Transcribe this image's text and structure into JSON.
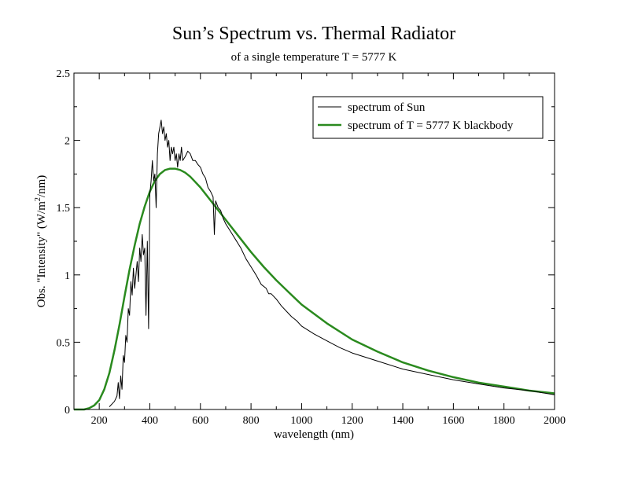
{
  "chart_data": {
    "type": "line",
    "title": "Sun’s Spectrum vs. Thermal Radiator",
    "subtitle": "of a single temperature T = 5777 K",
    "xlabel": "wavelength (nm)",
    "ylabel": {
      "prefix": "Obs. \"Intensity\" (W/m",
      "superscript": "2",
      "suffix": "/nm)"
    },
    "xlim": [
      100,
      2000
    ],
    "ylim": [
      0,
      2.5
    ],
    "x_ticks": [
      200,
      400,
      600,
      800,
      1000,
      1200,
      1400,
      1600,
      1800,
      2000
    ],
    "y_ticks": [
      0,
      0.5,
      1,
      1.5,
      2,
      2.5
    ],
    "y_tick_labels": [
      "0",
      "0.5",
      "1",
      "1.5",
      "2",
      "2.5"
    ],
    "grid": false,
    "legend_position": "top-right",
    "series": [
      {
        "name": "spectrum of Sun",
        "color": "#000000",
        "x": [
          240,
          250,
          260,
          270,
          275,
          280,
          285,
          290,
          295,
          300,
          305,
          310,
          315,
          320,
          325,
          330,
          335,
          340,
          345,
          350,
          355,
          360,
          365,
          370,
          375,
          380,
          385,
          390,
          395,
          400,
          405,
          410,
          415,
          420,
          425,
          430,
          435,
          440,
          445,
          450,
          455,
          460,
          465,
          470,
          475,
          480,
          485,
          490,
          495,
          500,
          505,
          510,
          515,
          520,
          525,
          530,
          540,
          550,
          560,
          570,
          580,
          590,
          600,
          610,
          620,
          630,
          640,
          650,
          655,
          660,
          670,
          680,
          690,
          700,
          720,
          740,
          760,
          780,
          800,
          820,
          840,
          860,
          870,
          880,
          900,
          920,
          940,
          960,
          980,
          1000,
          1050,
          1100,
          1150,
          1200,
          1300,
          1400,
          1500,
          1600,
          1700,
          1800,
          1900,
          2000
        ],
        "y": [
          0.02,
          0.04,
          0.06,
          0.1,
          0.2,
          0.08,
          0.25,
          0.15,
          0.4,
          0.35,
          0.55,
          0.5,
          0.75,
          0.7,
          0.95,
          0.85,
          1.05,
          0.9,
          1.0,
          1.1,
          0.95,
          1.2,
          1.1,
          1.3,
          1.15,
          1.2,
          0.7,
          1.25,
          0.6,
          1.6,
          1.7,
          1.85,
          1.7,
          1.75,
          1.5,
          1.9,
          2.05,
          2.1,
          2.15,
          2.05,
          2.1,
          2.0,
          2.05,
          1.95,
          2.0,
          1.85,
          1.95,
          1.9,
          1.95,
          1.85,
          1.9,
          1.8,
          1.9,
          1.85,
          1.95,
          1.85,
          1.88,
          1.92,
          1.9,
          1.85,
          1.85,
          1.82,
          1.8,
          1.75,
          1.72,
          1.65,
          1.62,
          1.58,
          1.3,
          1.55,
          1.5,
          1.48,
          1.42,
          1.38,
          1.32,
          1.26,
          1.2,
          1.12,
          1.06,
          1.0,
          0.93,
          0.9,
          0.86,
          0.86,
          0.82,
          0.77,
          0.73,
          0.69,
          0.66,
          0.62,
          0.56,
          0.51,
          0.46,
          0.42,
          0.36,
          0.3,
          0.26,
          0.22,
          0.19,
          0.16,
          0.14,
          0.11
        ]
      },
      {
        "name": "spectrum of T = 5777 K blackbody",
        "color": "#2a8a1e",
        "x": [
          100,
          120,
          140,
          160,
          180,
          200,
          220,
          240,
          260,
          280,
          300,
          320,
          340,
          360,
          380,
          400,
          420,
          440,
          460,
          480,
          500,
          520,
          540,
          560,
          580,
          600,
          650,
          700,
          750,
          800,
          850,
          900,
          950,
          1000,
          1100,
          1200,
          1300,
          1400,
          1500,
          1600,
          1700,
          1800,
          1900,
          2000
        ],
        "y": [
          0.0,
          0.0,
          0.0,
          0.01,
          0.03,
          0.07,
          0.15,
          0.27,
          0.44,
          0.63,
          0.84,
          1.04,
          1.22,
          1.38,
          1.51,
          1.62,
          1.7,
          1.75,
          1.78,
          1.79,
          1.79,
          1.78,
          1.76,
          1.73,
          1.69,
          1.65,
          1.53,
          1.41,
          1.29,
          1.17,
          1.06,
          0.96,
          0.87,
          0.78,
          0.64,
          0.52,
          0.43,
          0.35,
          0.29,
          0.24,
          0.2,
          0.17,
          0.14,
          0.12
        ]
      }
    ]
  }
}
